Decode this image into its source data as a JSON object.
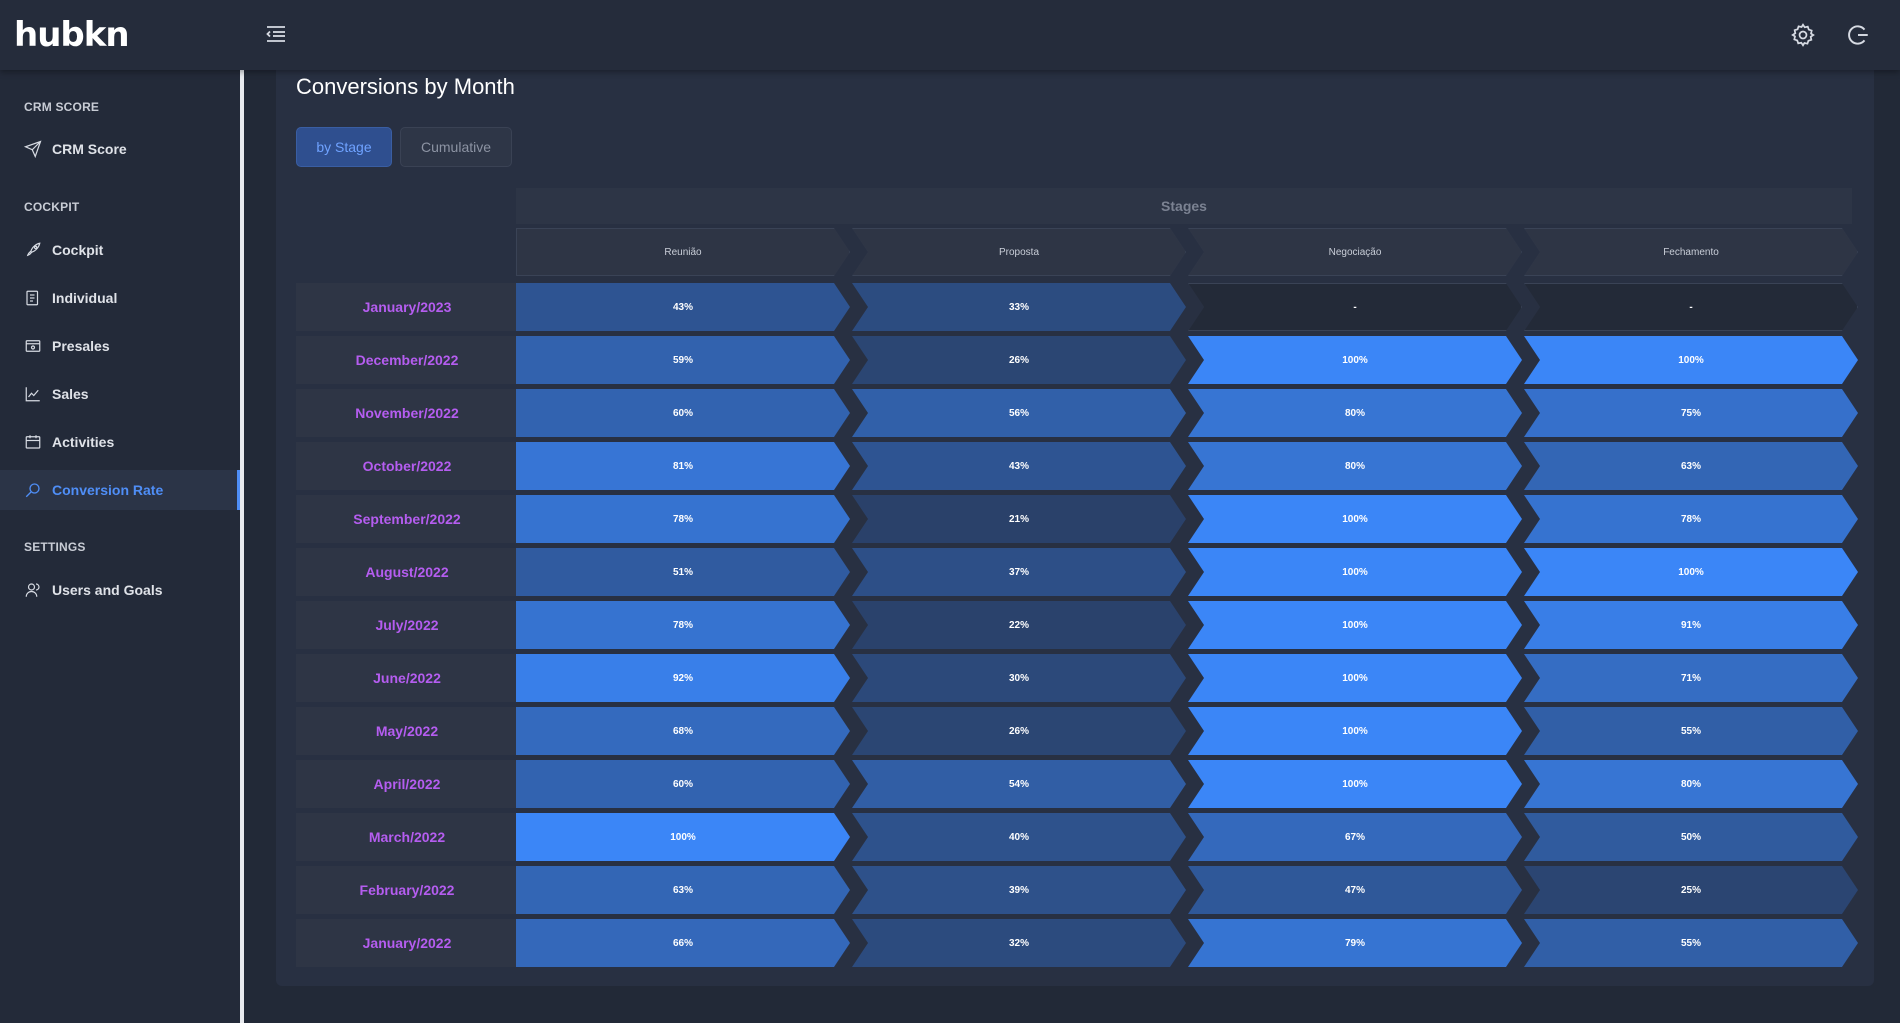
{
  "app": {
    "logo": "hubkn"
  },
  "sidebar": {
    "sections": [
      {
        "title": "CRM SCORE",
        "items": [
          {
            "label": "CRM Score",
            "icon": "send-icon"
          }
        ]
      },
      {
        "title": "COCKPIT",
        "items": [
          {
            "label": "Cockpit",
            "icon": "rocket-icon"
          },
          {
            "label": "Individual",
            "icon": "report-icon"
          },
          {
            "label": "Presales",
            "icon": "presentation-icon"
          },
          {
            "label": "Sales",
            "icon": "line-chart-icon"
          },
          {
            "label": "Activities",
            "icon": "calendar-icon"
          },
          {
            "label": "Conversion Rate",
            "icon": "search-icon",
            "active": true
          }
        ]
      },
      {
        "title": "SETTINGS",
        "items": [
          {
            "label": "Users and Goals",
            "icon": "users-icon"
          }
        ]
      }
    ]
  },
  "main": {
    "title": "Conversions by Month",
    "tabs": [
      {
        "label": "by Stage",
        "active": true
      },
      {
        "label": "Cumulative",
        "active": false
      }
    ],
    "table": {
      "group_header": "Stages",
      "stages": [
        "Reunião",
        "Proposta",
        "Negociação",
        "Fechamento"
      ],
      "rows": [
        {
          "month": "January/2023",
          "values": [
            "43%",
            "33%",
            "-",
            "-"
          ]
        },
        {
          "month": "December/2022",
          "values": [
            "59%",
            "26%",
            "100%",
            "100%"
          ]
        },
        {
          "month": "November/2022",
          "values": [
            "60%",
            "56%",
            "80%",
            "75%"
          ]
        },
        {
          "month": "October/2022",
          "values": [
            "81%",
            "43%",
            "80%",
            "63%"
          ]
        },
        {
          "month": "September/2022",
          "values": [
            "78%",
            "21%",
            "100%",
            "78%"
          ]
        },
        {
          "month": "August/2022",
          "values": [
            "51%",
            "37%",
            "100%",
            "100%"
          ]
        },
        {
          "month": "July/2022",
          "values": [
            "78%",
            "22%",
            "100%",
            "91%"
          ]
        },
        {
          "month": "June/2022",
          "values": [
            "92%",
            "30%",
            "100%",
            "71%"
          ]
        },
        {
          "month": "May/2022",
          "values": [
            "68%",
            "26%",
            "100%",
            "55%"
          ]
        },
        {
          "month": "April/2022",
          "values": [
            "60%",
            "54%",
            "100%",
            "80%"
          ]
        },
        {
          "month": "March/2022",
          "values": [
            "100%",
            "40%",
            "67%",
            "50%"
          ]
        },
        {
          "month": "February/2022",
          "values": [
            "63%",
            "39%",
            "47%",
            "25%"
          ]
        },
        {
          "month": "January/2022",
          "values": [
            "66%",
            "32%",
            "79%",
            "55%"
          ]
        }
      ]
    }
  },
  "colors": {
    "accent": "#4f8ef7",
    "month_label": "#b55df0",
    "cell_low": "#263249",
    "cell_high": "#3b86f7"
  }
}
